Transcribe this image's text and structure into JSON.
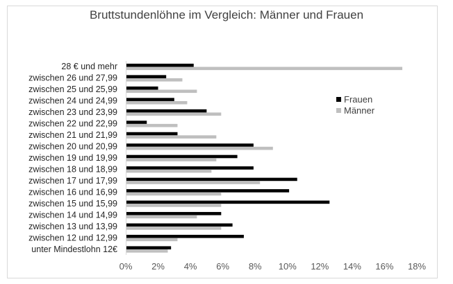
{
  "chart_data": {
    "type": "bar",
    "orientation": "horizontal",
    "title": "Bruttstundenlöhne im Vergleich: Männer und Frauen",
    "xlabel": "",
    "ylabel": "",
    "xlim": [
      0,
      18
    ],
    "x_ticks": [
      "0%",
      "2%",
      "4%",
      "6%",
      "8%",
      "10%",
      "12%",
      "14%",
      "16%",
      "18%"
    ],
    "categories": [
      "28 € und mehr",
      "zwischen 26 und 27,99",
      "zwischen 25 und 25,99",
      "zwischen 24 und 24,99",
      "zwischen 23 und 23,99",
      "zwischen 22 und 22,99",
      "zwischen 21 und 21,99",
      "zwischen 20 und 20,99",
      "zwischen 19 und 19,99",
      "zwischen 18 und 18,99",
      "zwischen 17 und 17,99",
      "zwischen 16 und 16,99",
      "zwischen 15 und 15,99",
      "zwischen 14 und 14,99",
      "zwischen 13 und 13,99",
      "zwischen 12 und 12,99",
      "unter Mindestlohn 12€"
    ],
    "series": [
      {
        "name": "Frauen",
        "color": "#000000",
        "values": [
          4.2,
          2.5,
          2.0,
          3.0,
          5.0,
          1.3,
          3.2,
          7.9,
          6.9,
          7.9,
          10.6,
          10.1,
          12.6,
          5.9,
          6.6,
          7.3,
          2.8
        ]
      },
      {
        "name": "Männer",
        "color": "#bfbfbf",
        "values": [
          17.1,
          3.5,
          4.4,
          3.8,
          5.9,
          3.2,
          5.6,
          9.1,
          5.6,
          5.3,
          8.3,
          5.9,
          5.9,
          4.4,
          5.9,
          3.2,
          2.6
        ]
      }
    ],
    "grid": false,
    "legend_position": "right"
  }
}
